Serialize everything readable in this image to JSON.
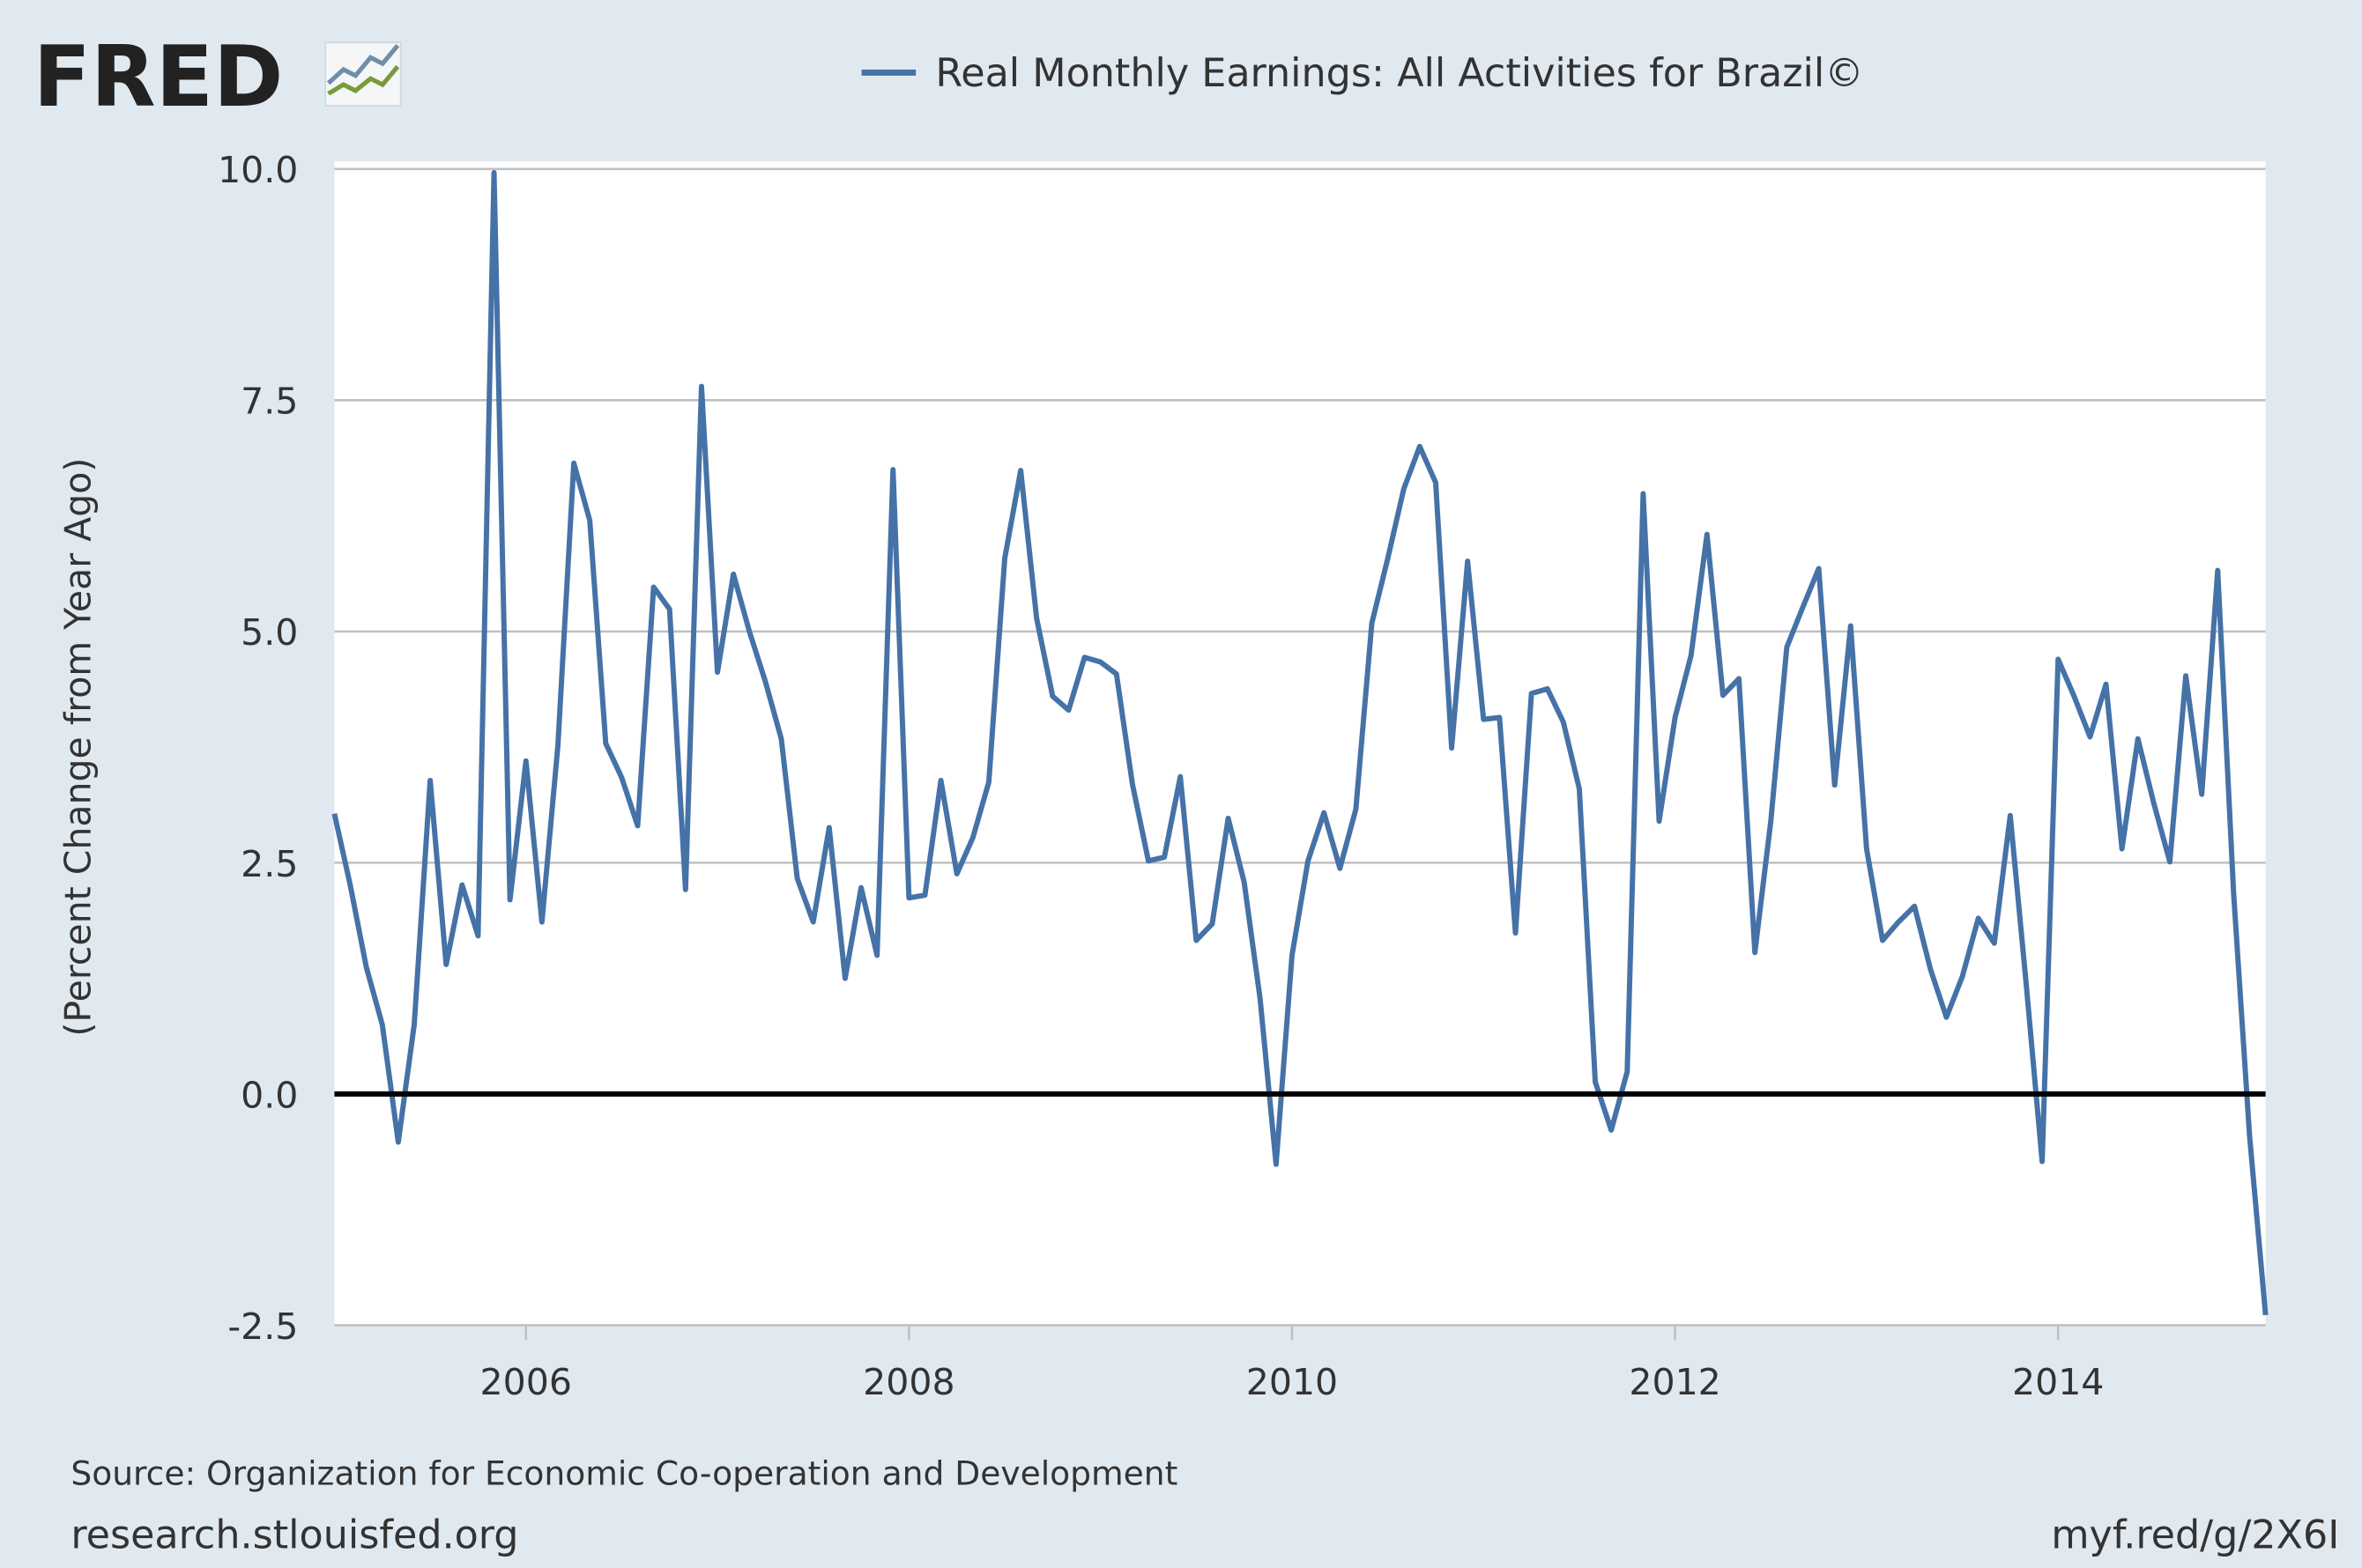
{
  "chart_data": {
    "type": "line",
    "logo": "FRED",
    "title": "Real Monthly Earnings: All Activities for Brazil©",
    "y_label": "(Percent Change from Year Ago)",
    "source": "Source: Organization for Economic Co-operation and Development",
    "site": "research.stlouisfed.org",
    "short_url": "myf.red/g/2X6I",
    "x": [
      "2005-01",
      "2005-02",
      "2005-03",
      "2005-04",
      "2005-05",
      "2005-06",
      "2005-07",
      "2005-08",
      "2005-09",
      "2005-10",
      "2005-11",
      "2005-12",
      "2006-01",
      "2006-02",
      "2006-03",
      "2006-04",
      "2006-05",
      "2006-06",
      "2006-07",
      "2006-08",
      "2006-09",
      "2006-10",
      "2006-11",
      "2006-12",
      "2007-01",
      "2007-02",
      "2007-03",
      "2007-04",
      "2007-05",
      "2007-06",
      "2007-07",
      "2007-08",
      "2007-09",
      "2007-10",
      "2007-11",
      "2007-12",
      "2008-01",
      "2008-02",
      "2008-03",
      "2008-04",
      "2008-05",
      "2008-06",
      "2008-07",
      "2008-08",
      "2008-09",
      "2008-10",
      "2008-11",
      "2008-12",
      "2009-01",
      "2009-02",
      "2009-03",
      "2009-04",
      "2009-05",
      "2009-06",
      "2009-07",
      "2009-08",
      "2009-09",
      "2009-10",
      "2009-11",
      "2009-12",
      "2010-01",
      "2010-02",
      "2010-03",
      "2010-04",
      "2010-05",
      "2010-06",
      "2010-07",
      "2010-08",
      "2010-09",
      "2010-10",
      "2010-11",
      "2010-12",
      "2011-01",
      "2011-02",
      "2011-03",
      "2011-04",
      "2011-05",
      "2011-06",
      "2011-07",
      "2011-08",
      "2011-09",
      "2011-10",
      "2011-11",
      "2011-12",
      "2012-01",
      "2012-02",
      "2012-03",
      "2012-04",
      "2012-05",
      "2012-06",
      "2012-07",
      "2012-08",
      "2012-09",
      "2012-10",
      "2012-11",
      "2012-12",
      "2013-01",
      "2013-02",
      "2013-03",
      "2013-04",
      "2013-05",
      "2013-06",
      "2013-07",
      "2013-08",
      "2013-09",
      "2013-10",
      "2013-11",
      "2013-12",
      "2014-01",
      "2014-02",
      "2014-03",
      "2014-04",
      "2014-05",
      "2014-06",
      "2014-07",
      "2014-08",
      "2014-09",
      "2014-10",
      "2014-11",
      "2014-12",
      "2015-01",
      "2015-02"
    ],
    "series": [
      {
        "name": "Real Monthly Earnings: All Activities for Brazil©",
        "color": "#4572a7",
        "values": [
          3.03,
          2.25,
          1.37,
          0.75,
          -0.52,
          0.75,
          3.39,
          1.4,
          2.26,
          1.71,
          9.96,
          2.1,
          3.6,
          1.86,
          3.76,
          6.82,
          6.2,
          3.79,
          3.42,
          2.9,
          5.48,
          5.24,
          2.21,
          7.65,
          4.56,
          5.62,
          5.0,
          4.46,
          3.84,
          2.33,
          1.86,
          2.88,
          1.25,
          2.23,
          1.5,
          6.75,
          2.12,
          2.15,
          3.39,
          2.38,
          2.77,
          3.37,
          5.79,
          6.74,
          5.14,
          4.3,
          4.15,
          4.72,
          4.67,
          4.54,
          3.35,
          2.52,
          2.56,
          3.43,
          1.66,
          1.84,
          2.98,
          2.29,
          1.03,
          -0.76,
          1.5,
          2.52,
          3.04,
          2.44,
          3.08,
          5.09,
          5.79,
          6.54,
          7.0,
          6.61,
          3.74,
          5.76,
          4.05,
          4.07,
          1.74,
          4.33,
          4.38,
          4.02,
          3.3,
          0.13,
          -0.39,
          0.24,
          6.49,
          2.95,
          4.07,
          4.74,
          6.05,
          4.31,
          4.49,
          1.53,
          2.95,
          4.83,
          5.26,
          5.68,
          3.34,
          5.06,
          2.65,
          1.66,
          1.86,
          2.03,
          1.35,
          0.83,
          1.27,
          1.9,
          1.63,
          3.01,
          1.19,
          -0.73,
          4.7,
          4.3,
          3.86,
          4.43,
          2.65,
          3.84,
          3.14,
          2.51,
          4.52,
          3.24,
          5.66,
          2.16,
          -0.46,
          -2.39
        ]
      }
    ],
    "xlim": [
      "2005-01",
      "2015-02"
    ],
    "xticks": [
      {
        "value": "2006-01",
        "label": "2006"
      },
      {
        "value": "2008-01",
        "label": "2008"
      },
      {
        "value": "2010-01",
        "label": "2010"
      },
      {
        "value": "2012-01",
        "label": "2012"
      },
      {
        "value": "2014-01",
        "label": "2014"
      }
    ],
    "ylim": [
      -2.5,
      10
    ],
    "yticks": [
      {
        "value": -2.5,
        "label": "-2.5"
      },
      {
        "value": 0,
        "label": "0.0"
      },
      {
        "value": 2.5,
        "label": "2.5"
      },
      {
        "value": 5,
        "label": "5.0"
      },
      {
        "value": 7.5,
        "label": "7.5"
      },
      {
        "value": 10,
        "label": "10.0"
      }
    ],
    "grid": true,
    "zero_line": true
  }
}
